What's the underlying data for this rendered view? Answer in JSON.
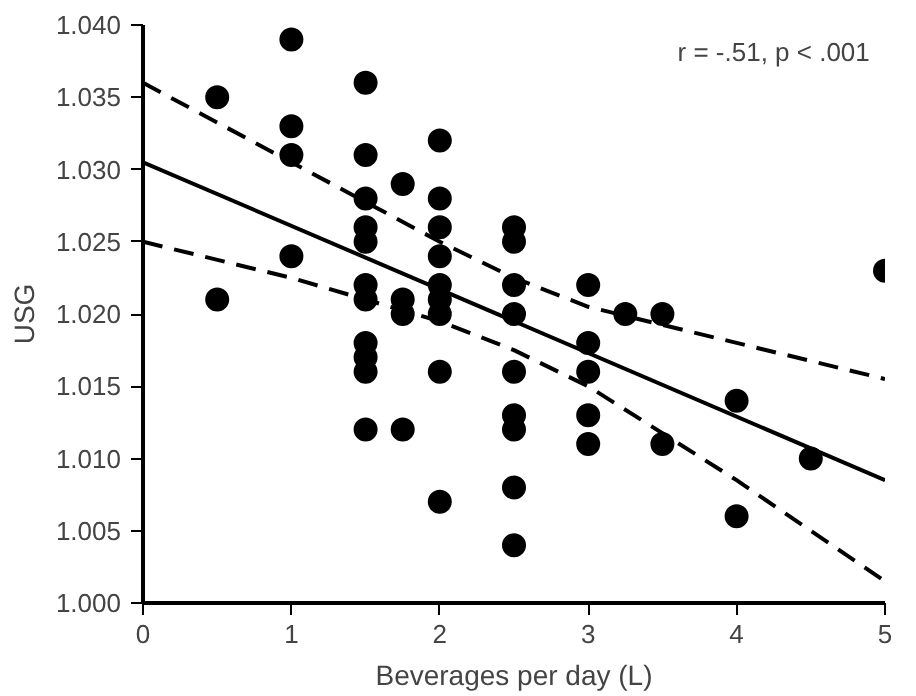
{
  "chart_data": {
    "type": "scatter",
    "xlabel": "Beverages per day (L)",
    "ylabel": "USG",
    "annotations": [
      "r = -.51,  p < .001"
    ],
    "xlim": [
      0,
      5
    ],
    "xticks": [
      0,
      1,
      2,
      3,
      4,
      5
    ],
    "ylim": [
      1.0,
      1.04
    ],
    "yticks": [
      {
        "value": 1.0,
        "label": "1.000"
      },
      {
        "value": 1.005,
        "label": "1.005"
      },
      {
        "value": 1.01,
        "label": "1.010"
      },
      {
        "value": 1.015,
        "label": "1.015"
      },
      {
        "value": 1.02,
        "label": "1.020"
      },
      {
        "value": 1.025,
        "label": "1.025"
      },
      {
        "value": 1.03,
        "label": "1.030"
      },
      {
        "value": 1.035,
        "label": "1.035"
      },
      {
        "value": 1.04,
        "label": "1.040"
      }
    ],
    "grid": false,
    "series": [
      {
        "marker": "circle",
        "color": "#000000",
        "x": [
          0.5,
          0.5,
          1,
          1,
          1,
          1,
          1.5,
          1.5,
          1.5,
          1.5,
          1.5,
          1.5,
          1.5,
          1.5,
          1.5,
          1.5,
          1.5,
          1.75,
          1.75,
          1.75,
          1.75,
          2,
          2,
          2,
          2,
          2,
          2,
          2,
          2,
          2,
          2.5,
          2.5,
          2.5,
          2.5,
          2.5,
          2.5,
          2.5,
          2.5,
          2.5,
          3,
          3,
          3,
          3,
          3,
          3.25,
          3.5,
          3.5,
          4,
          4,
          4.5,
          5
        ],
        "values": [
          1.035,
          1.021,
          1.039,
          1.033,
          1.031,
          1.024,
          1.036,
          1.031,
          1.028,
          1.026,
          1.025,
          1.022,
          1.021,
          1.018,
          1.017,
          1.016,
          1.012,
          1.029,
          1.021,
          1.02,
          1.012,
          1.032,
          1.028,
          1.026,
          1.024,
          1.022,
          1.021,
          1.02,
          1.016,
          1.007,
          1.026,
          1.025,
          1.022,
          1.02,
          1.016,
          1.013,
          1.012,
          1.008,
          1.004,
          1.022,
          1.018,
          1.016,
          1.013,
          1.011,
          1.02,
          1.02,
          1.011,
          1.014,
          1.006,
          1.01,
          1.023
        ]
      },
      {
        "type": "line",
        "color": "#000000",
        "line_style": "solid",
        "marker": "none",
        "x": [
          0,
          5
        ],
        "values": [
          1.0305,
          1.0085
        ]
      },
      {
        "type": "line",
        "color": "#000000",
        "line_style": "dashed",
        "marker": "none",
        "x": [
          0,
          1,
          2,
          2.5,
          3,
          4,
          5
        ],
        "values": [
          1.036,
          1.0305,
          1.025,
          1.0225,
          1.0205,
          1.018,
          1.0155
        ]
      },
      {
        "type": "line",
        "color": "#000000",
        "line_style": "dashed",
        "marker": "none",
        "x": [
          0,
          1,
          2,
          2.5,
          3,
          4,
          5
        ],
        "values": [
          1.025,
          1.0225,
          1.0195,
          1.0175,
          1.015,
          1.0085,
          1.0015
        ]
      }
    ]
  }
}
